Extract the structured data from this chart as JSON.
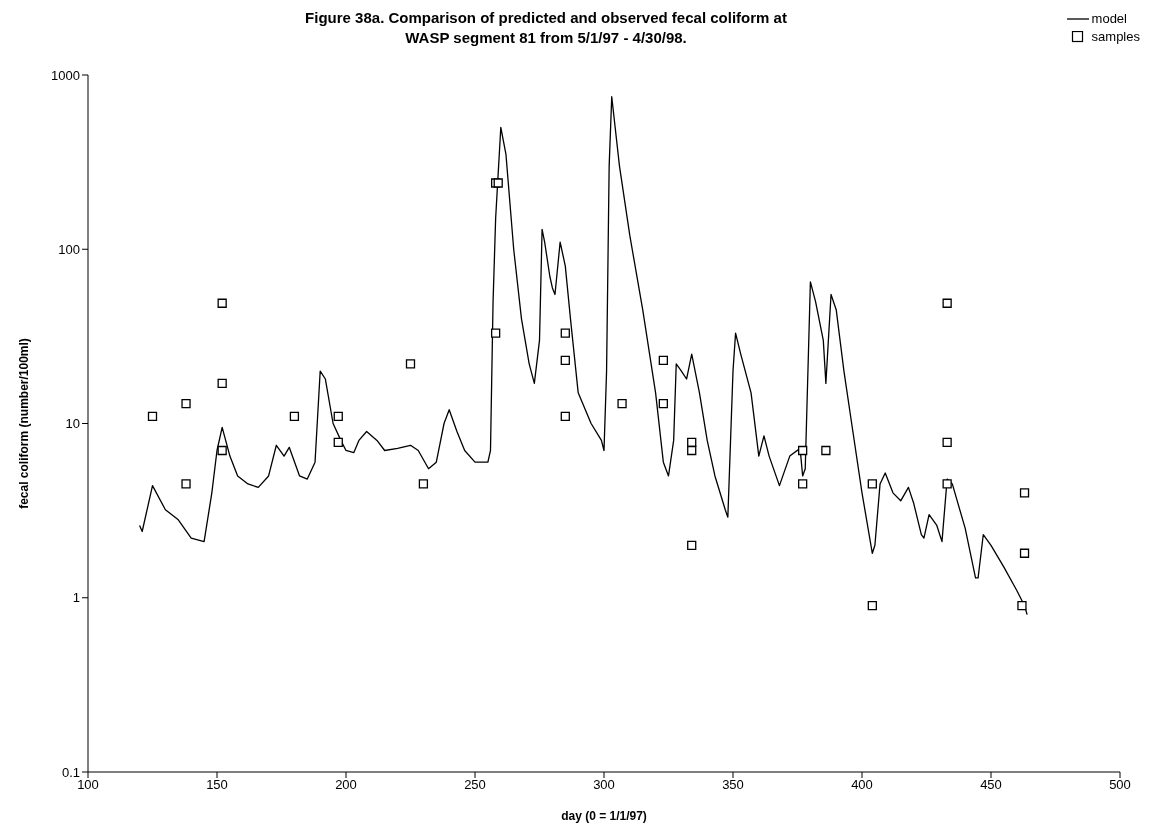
{
  "chart_data": {
    "type": "line",
    "title": "Figure 38a. Comparison of predicted and observed fecal coliform at WASP segment 81 from 5/1/97 - 4/30/98.",
    "xlabel": "day (0 = 1/1/97)",
    "ylabel": "fecal coliform (number/100ml)",
    "log": "y",
    "grid": false,
    "legend": "top right",
    "xlim": [
      100,
      500
    ],
    "xticks": [
      100,
      150,
      200,
      250,
      300,
      350,
      400,
      450,
      500
    ],
    "ylim": [
      0.1,
      1000
    ],
    "yticks": [
      0.1,
      1,
      10,
      100,
      1000
    ],
    "series": [
      {
        "name": "model",
        "color": "#000000",
        "marker": "none",
        "line_style": "solid",
        "x": [
          120,
          121,
          125,
          130,
          135,
          140,
          145,
          148,
          150,
          152,
          155,
          158,
          162,
          166,
          170,
          173,
          176,
          178,
          182,
          185,
          188,
          190,
          192,
          195,
          198,
          200,
          203,
          205,
          208,
          212,
          215,
          220,
          225,
          228,
          232,
          235,
          238,
          240,
          243,
          246,
          250,
          255,
          256,
          257,
          258,
          260,
          262,
          265,
          268,
          271,
          273,
          275,
          276,
          277,
          279,
          280,
          281,
          283,
          285,
          287,
          290,
          295,
          299,
          300,
          301,
          302,
          303,
          306,
          310,
          315,
          320,
          323,
          325,
          327,
          328,
          330,
          332,
          334,
          337,
          340,
          343,
          347,
          348,
          350,
          351,
          353,
          357,
          360,
          362,
          364,
          368,
          372,
          376,
          377,
          378,
          380,
          382,
          385,
          386,
          388,
          390,
          393,
          396,
          400,
          404,
          405,
          407,
          409,
          412,
          415,
          418,
          420,
          423,
          424,
          426,
          429,
          431,
          433,
          435,
          440,
          444,
          445,
          447,
          450,
          455,
          460,
          463,
          464
        ],
        "values": [
          2.6,
          2.4,
          4.4,
          3.2,
          2.8,
          2.2,
          2.1,
          4,
          7,
          9.5,
          6.5,
          5,
          4.5,
          4.3,
          5,
          7.5,
          6.5,
          7.3,
          5,
          4.8,
          6,
          20,
          18,
          10,
          8,
          7,
          6.8,
          8,
          9,
          8,
          7,
          7.2,
          7.5,
          7,
          5.5,
          6,
          10,
          12,
          9,
          7,
          6,
          6,
          7,
          50,
          150,
          500,
          350,
          100,
          40,
          22,
          17,
          30,
          130,
          110,
          70,
          60,
          55,
          110,
          80,
          40,
          15,
          10,
          8,
          7,
          20,
          300,
          750,
          300,
          120,
          45,
          15,
          6,
          5,
          8,
          22,
          20,
          18,
          25,
          15,
          8,
          5,
          3.2,
          2.9,
          20,
          33,
          25,
          15,
          6.5,
          8.5,
          6.5,
          4.4,
          6.5,
          7.2,
          5,
          5.5,
          65,
          50,
          30,
          17,
          55,
          45,
          20,
          10,
          4,
          1.8,
          2,
          4.5,
          5.2,
          4,
          3.6,
          4.3,
          3.5,
          2.3,
          2.2,
          3,
          2.6,
          2.1,
          4.8,
          4.5,
          2.5,
          1.3,
          1.3,
          2.3,
          2,
          1.5,
          1.1,
          0.9,
          0.8
        ]
      },
      {
        "name": "samples",
        "type": "scatter",
        "color": "#000000",
        "marker": "square",
        "x": [
          125,
          138,
          138,
          152,
          152,
          152,
          180,
          197,
          197,
          225,
          230,
          258,
          259,
          258,
          285,
          285,
          285,
          307,
          323,
          323,
          334,
          334,
          334,
          377,
          377,
          386,
          404,
          404,
          433,
          433,
          433,
          462,
          463,
          463
        ],
        "values": [
          11,
          13,
          4.5,
          49,
          17,
          7,
          11,
          11,
          7.8,
          22,
          4.5,
          240,
          240,
          33,
          33,
          23,
          11,
          13,
          23,
          13,
          7.8,
          7,
          2,
          7,
          4.5,
          7,
          4.5,
          0.9,
          49,
          7.8,
          4.5,
          0.9,
          4,
          1.8
        ]
      }
    ]
  }
}
